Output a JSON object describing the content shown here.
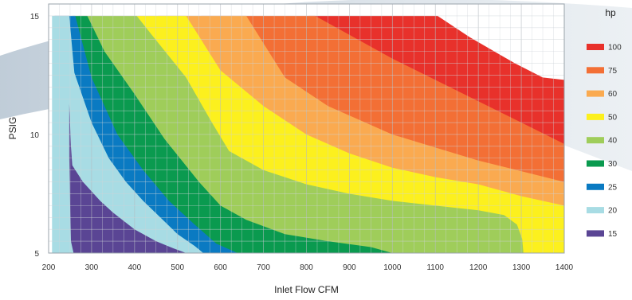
{
  "chart_data": {
    "type": "area",
    "title": "",
    "xlabel": "Inlet Flow CFM",
    "ylabel": "PSIG",
    "xlim": [
      200,
      1400
    ],
    "ylim": [
      5,
      15.5
    ],
    "x_ticks": [
      200,
      300,
      400,
      500,
      600,
      700,
      800,
      900,
      1000,
      1100,
      1200,
      1300,
      1400
    ],
    "y_ticks": [
      5,
      10,
      15
    ],
    "grid": true,
    "legend_title": "hp",
    "legend_position": "right",
    "series": [
      {
        "name": "100",
        "color": "#e8312b",
        "points": [
          [
            805,
            15
          ],
          [
            1105,
            15
          ],
          [
            1180,
            14.1
          ],
          [
            1285,
            13
          ],
          [
            1350,
            12.4
          ],
          [
            1400,
            12.3
          ],
          [
            1400,
            5
          ],
          [
            1350,
            5
          ],
          [
            805,
            5
          ]
        ]
      },
      {
        "name": "75",
        "color": "#f36f35",
        "points": [
          [
            555,
            15
          ],
          [
            820,
            15
          ],
          [
            1000,
            13.2
          ],
          [
            1200,
            11.4
          ],
          [
            1300,
            10.5
          ],
          [
            1400,
            9.6
          ],
          [
            1400,
            5
          ],
          [
            555,
            5
          ]
        ]
      },
      {
        "name": "60",
        "color": "#faaa50",
        "points": [
          [
            455,
            15
          ],
          [
            660,
            15
          ],
          [
            750,
            12.4
          ],
          [
            850,
            11.2
          ],
          [
            1000,
            10
          ],
          [
            1200,
            8.9
          ],
          [
            1400,
            8
          ],
          [
            1400,
            5
          ],
          [
            455,
            5
          ]
        ]
      },
      {
        "name": "50",
        "color": "#fcf01e",
        "points": [
          [
            403,
            15
          ],
          [
            520,
            15
          ],
          [
            600,
            12.7
          ],
          [
            700,
            11.2
          ],
          [
            800,
            10
          ],
          [
            900,
            9.2
          ],
          [
            1000,
            8.6
          ],
          [
            1100,
            8.2
          ],
          [
            1200,
            7.9
          ],
          [
            1300,
            7.4
          ],
          [
            1400,
            7
          ],
          [
            1400,
            5
          ],
          [
            403,
            5
          ]
        ]
      },
      {
        "name": "40",
        "color": "#9fcd5a",
        "points": [
          [
            270,
            15
          ],
          [
            405,
            15
          ],
          [
            440,
            14.2
          ],
          [
            520,
            12.4
          ],
          [
            580,
            10.5
          ],
          [
            620,
            9.3
          ],
          [
            700,
            8.5
          ],
          [
            800,
            7.9
          ],
          [
            900,
            7.5
          ],
          [
            1000,
            7.2
          ],
          [
            1100,
            7
          ],
          [
            1200,
            6.8
          ],
          [
            1260,
            6.6
          ],
          [
            1290,
            6.2
          ],
          [
            1302,
            5.6
          ],
          [
            1305,
            5
          ],
          [
            270,
            5
          ]
        ]
      },
      {
        "name": "30",
        "color": "#0a9a4f",
        "points": [
          [
            255,
            15
          ],
          [
            290,
            15
          ],
          [
            330,
            13.5
          ],
          [
            400,
            11.7
          ],
          [
            470,
            9.8
          ],
          [
            550,
            8
          ],
          [
            600,
            7
          ],
          [
            660,
            6.4
          ],
          [
            750,
            5.8
          ],
          [
            850,
            5.5
          ],
          [
            950,
            5.25
          ],
          [
            1000,
            5
          ],
          [
            255,
            5
          ]
        ]
      },
      {
        "name": "25",
        "color": "#0a7ac2",
        "points": [
          [
            214,
            15
          ],
          [
            262,
            15
          ],
          [
            300,
            12.4
          ],
          [
            360,
            10
          ],
          [
            420,
            8.5
          ],
          [
            480,
            7.2
          ],
          [
            540,
            6.2
          ],
          [
            590,
            5.4
          ],
          [
            640,
            5
          ],
          [
            214,
            5
          ]
        ]
      },
      {
        "name": "20",
        "color": "#a8dce4",
        "points": [
          [
            208,
            15
          ],
          [
            248,
            15
          ],
          [
            260,
            12.6
          ],
          [
            300,
            10.5
          ],
          [
            340,
            9
          ],
          [
            380,
            8
          ],
          [
            420,
            7.2
          ],
          [
            460,
            6.5
          ],
          [
            500,
            5.8
          ],
          [
            540,
            5.3
          ],
          [
            560,
            5
          ],
          [
            208,
            5
          ]
        ]
      },
      {
        "name": "15",
        "color": "#5a4594",
        "points": [
          [
            248,
            11.3
          ],
          [
            252,
            9.5
          ],
          [
            255,
            8.7
          ],
          [
            280,
            8
          ],
          [
            320,
            7.2
          ],
          [
            350,
            6.7
          ],
          [
            400,
            6
          ],
          [
            450,
            5.5
          ],
          [
            490,
            5.2
          ],
          [
            520,
            5
          ],
          [
            258,
            5
          ],
          [
            252,
            5.5
          ],
          [
            250,
            7
          ],
          [
            248,
            9
          ]
        ]
      }
    ]
  }
}
